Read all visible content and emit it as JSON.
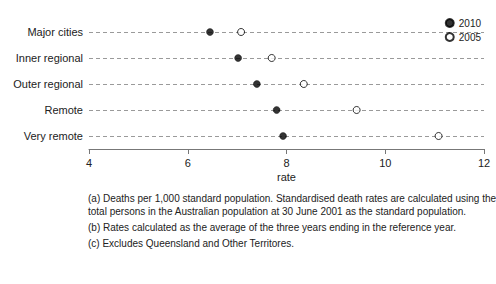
{
  "chart_data": {
    "type": "scatter",
    "orientation": "horizontal",
    "categories": [
      "Major cities",
      "Inner regional",
      "Outer regional",
      "Remote",
      "Very remote"
    ],
    "series": [
      {
        "name": "2010",
        "color": "#000000",
        "marker": "filled",
        "values": [
          6.45,
          7.02,
          7.4,
          7.8,
          7.93
        ]
      },
      {
        "name": "2005",
        "color": "#ffffff",
        "marker": "open",
        "values": [
          7.08,
          7.7,
          8.35,
          9.42,
          11.08
        ]
      }
    ],
    "x_label": "rate",
    "xlim": [
      4,
      12
    ],
    "xticks": [
      4,
      6,
      8,
      10,
      12
    ],
    "grid": true,
    "legend": "top-right",
    "annotations": [
      "(a) Deaths per 1,000 standard population. Standardised death rates are calculated using the",
      "total persons in the Australian population at 30 June 2001 as the standard population.",
      "(b) Rates calculated as the average of the three years ending in the reference year.",
      "(c) Excludes Queensland and Other Territores."
    ]
  }
}
